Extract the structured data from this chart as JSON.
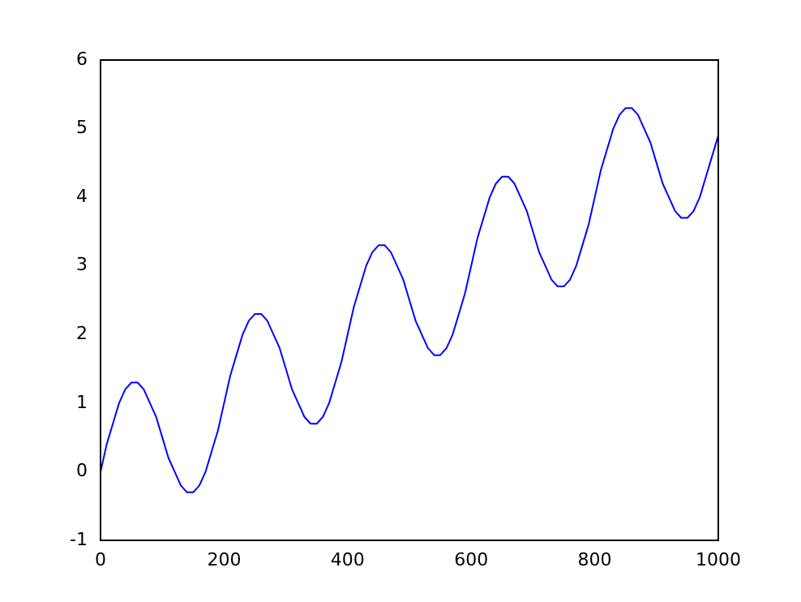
{
  "chart_data": {
    "type": "line",
    "x": [
      0,
      10,
      20,
      30,
      40,
      50,
      60,
      70,
      80,
      90,
      100,
      110,
      120,
      130,
      140,
      150,
      160,
      170,
      180,
      190,
      200,
      210,
      220,
      230,
      240,
      250,
      260,
      270,
      280,
      290,
      300,
      310,
      320,
      330,
      340,
      350,
      360,
      370,
      380,
      390,
      400,
      410,
      420,
      430,
      440,
      450,
      460,
      470,
      480,
      490,
      500,
      510,
      520,
      530,
      540,
      550,
      560,
      570,
      580,
      590,
      600,
      610,
      620,
      630,
      640,
      650,
      660,
      670,
      680,
      690,
      700,
      710,
      720,
      730,
      740,
      750,
      760,
      770,
      780,
      790,
      800,
      810,
      820,
      830,
      840,
      850,
      860,
      870,
      880,
      890,
      900,
      910,
      920,
      930,
      940,
      950,
      960,
      970,
      980,
      990,
      1000
    ],
    "series": [
      {
        "color": "#0000ff",
        "values": [
          0,
          0.4,
          0.7,
          1.0,
          1.2,
          1.3,
          1.3,
          1.2,
          1.0,
          0.8,
          0.5,
          0.2,
          0.0,
          -0.2,
          -0.3,
          -0.3,
          -0.2,
          0.0,
          0.3,
          0.6,
          1.0,
          1.4,
          1.7,
          2.0,
          2.2,
          2.3,
          2.3,
          2.2,
          2.0,
          1.8,
          1.5,
          1.2,
          1.0,
          0.8,
          0.7,
          0.7,
          0.8,
          1.0,
          1.3,
          1.6,
          2.0,
          2.4,
          2.7,
          3.0,
          3.2,
          3.3,
          3.3,
          3.2,
          3.0,
          2.8,
          2.5,
          2.2,
          2.0,
          1.8,
          1.7,
          1.7,
          1.8,
          2.0,
          2.3,
          2.6,
          3.0,
          3.4,
          3.7,
          4.0,
          4.2,
          4.3,
          4.3,
          4.2,
          4.0,
          3.8,
          3.5,
          3.2,
          3.0,
          2.8,
          2.7,
          2.7,
          2.8,
          3.0,
          3.3,
          3.6,
          4.0,
          4.4,
          4.7,
          5.0,
          5.2,
          5.3,
          5.3,
          5.2,
          5.0,
          4.8,
          4.5,
          4.2,
          4.0,
          3.8,
          3.7,
          3.7,
          3.8,
          4.0,
          4.3,
          4.6,
          4.9
        ]
      }
    ],
    "xlim": [
      0,
      1000
    ],
    "xticks": [
      0,
      200,
      400,
      600,
      800,
      1000
    ],
    "ylim": [
      -1,
      6
    ],
    "yticks": [
      -1,
      0,
      1,
      2,
      3,
      4,
      5,
      6
    ],
    "grid": false,
    "legend": false,
    "marker": "none",
    "line_style": "solid"
  }
}
